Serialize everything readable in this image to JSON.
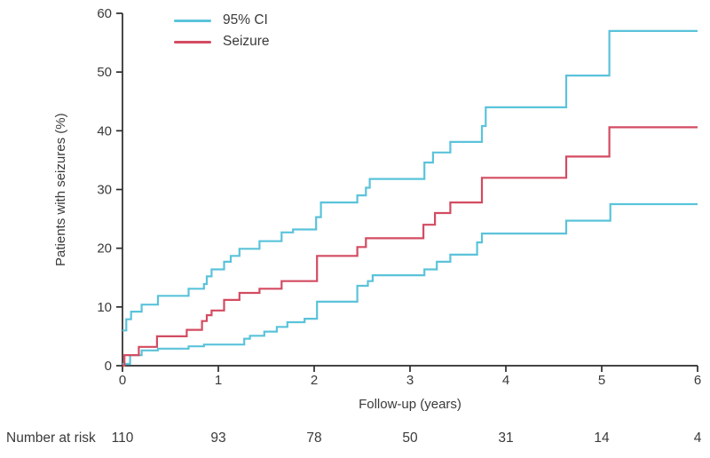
{
  "chart_data": {
    "type": "line",
    "subtype": "step",
    "title": "",
    "xlabel": "Follow-up (years)",
    "ylabel": "Patients with seizures (%)",
    "xlim": [
      0,
      6
    ],
    "ylim": [
      0,
      60
    ],
    "xticks": [
      0,
      1,
      2,
      3,
      4,
      5,
      6
    ],
    "yticks": [
      0,
      10,
      20,
      30,
      40,
      50,
      60
    ],
    "grid": "off",
    "legend_position": "top-left-inside",
    "colors": {
      "ci": "#5ac3da",
      "seizure": "#d34b61",
      "axis": "#2b2b2b",
      "text": "#3a3a3a"
    },
    "legend_entries": [
      {
        "label": "95% CI",
        "color_key": "ci"
      },
      {
        "label": "Seizure",
        "color_key": "seizure"
      }
    ],
    "series": [
      {
        "name": "95% CI upper bound",
        "color_key": "ci",
        "points": [
          [
            0,
            6
          ],
          [
            0.04,
            7.9
          ],
          [
            0.09,
            9.2
          ],
          [
            0.2,
            10.4
          ],
          [
            0.37,
            11.9
          ],
          [
            0.69,
            13.1
          ],
          [
            0.85,
            13.9
          ],
          [
            0.88,
            15.2
          ],
          [
            0.93,
            16.4
          ],
          [
            1.06,
            17.7
          ],
          [
            1.13,
            18.7
          ],
          [
            1.22,
            19.9
          ],
          [
            1.43,
            21.2
          ],
          [
            1.66,
            22.7
          ],
          [
            1.78,
            23.2
          ],
          [
            2.02,
            25.3
          ],
          [
            2.07,
            27.8
          ],
          [
            2.45,
            29
          ],
          [
            2.54,
            30.3
          ],
          [
            2.58,
            31.8
          ],
          [
            3.15,
            34.6
          ],
          [
            3.24,
            36.3
          ],
          [
            3.42,
            38.1
          ],
          [
            3.75,
            40.8
          ],
          [
            3.79,
            44
          ],
          [
            4.63,
            49.4
          ],
          [
            5.08,
            57
          ],
          [
            6,
            57
          ]
        ]
      },
      {
        "name": "95% CI lower bound",
        "color_key": "ci",
        "points": [
          [
            0,
            0.3
          ],
          [
            0.08,
            1.8
          ],
          [
            0.2,
            2.6
          ],
          [
            0.37,
            2.9
          ],
          [
            0.69,
            3.3
          ],
          [
            0.85,
            3.6
          ],
          [
            1.27,
            4.6
          ],
          [
            1.33,
            5.1
          ],
          [
            1.48,
            5.8
          ],
          [
            1.61,
            6.6
          ],
          [
            1.72,
            7.4
          ],
          [
            1.9,
            8
          ],
          [
            2.03,
            10.9
          ],
          [
            2.45,
            13.6
          ],
          [
            2.56,
            14.4
          ],
          [
            2.61,
            15.4
          ],
          [
            3.15,
            16.4
          ],
          [
            3.28,
            17.7
          ],
          [
            3.42,
            18.9
          ],
          [
            3.7,
            21
          ],
          [
            3.75,
            22.5
          ],
          [
            4.63,
            24.7
          ],
          [
            5.09,
            27.5
          ],
          [
            6,
            27.5
          ]
        ]
      },
      {
        "name": "Seizure",
        "color_key": "seizure",
        "points": [
          [
            0,
            0
          ],
          [
            0.02,
            1.8
          ],
          [
            0.17,
            3.2
          ],
          [
            0.36,
            5
          ],
          [
            0.67,
            6.1
          ],
          [
            0.83,
            7.6
          ],
          [
            0.88,
            8.6
          ],
          [
            0.93,
            9.4
          ],
          [
            1.06,
            11.2
          ],
          [
            1.22,
            12.4
          ],
          [
            1.43,
            13.1
          ],
          [
            1.66,
            14.4
          ],
          [
            2.03,
            18.7
          ],
          [
            2.45,
            20.2
          ],
          [
            2.54,
            21.7
          ],
          [
            3.14,
            24
          ],
          [
            3.26,
            26
          ],
          [
            3.42,
            27.8
          ],
          [
            3.75,
            32
          ],
          [
            4.63,
            35.6
          ],
          [
            5.08,
            40.6
          ],
          [
            6,
            40.6
          ]
        ]
      }
    ],
    "number_at_risk": {
      "label": "Number at risk",
      "values": [
        110,
        93,
        78,
        50,
        31,
        14,
        4
      ]
    }
  }
}
